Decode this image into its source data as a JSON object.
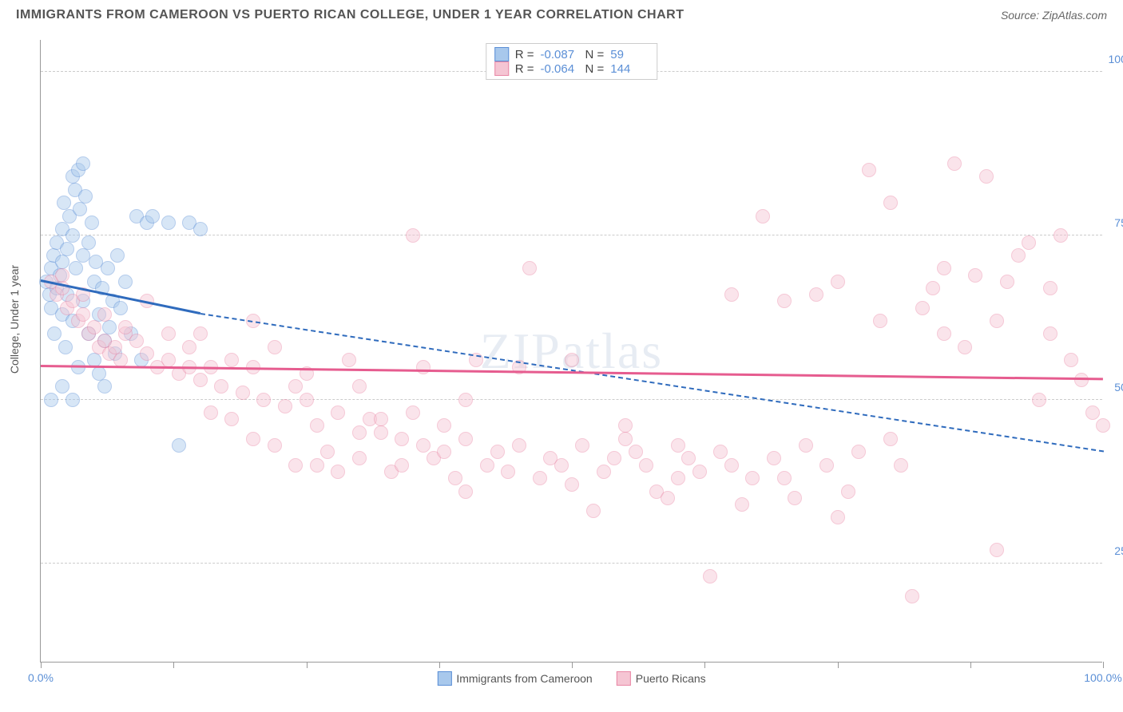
{
  "title": "IMMIGRANTS FROM CAMEROON VS PUERTO RICAN COLLEGE, UNDER 1 YEAR CORRELATION CHART",
  "source": "Source: ZipAtlas.com",
  "watermark": "ZIPatlas",
  "ylabel": "College, Under 1 year",
  "chart": {
    "type": "scatter",
    "xlim": [
      0,
      100
    ],
    "ylim": [
      10,
      105
    ],
    "ytick_values": [
      25,
      50,
      75,
      100
    ],
    "ytick_labels": [
      "25.0%",
      "50.0%",
      "75.0%",
      "100.0%"
    ],
    "xtick_values": [
      0,
      12.5,
      25,
      37.5,
      50,
      62.5,
      75,
      87.5,
      100
    ],
    "xtick_labels_shown": {
      "0": "0.0%",
      "100": "100.0%"
    },
    "grid_color": "#cccccc",
    "background_color": "#ffffff",
    "axis_color": "#999999",
    "tick_label_color": "#5b8fd6",
    "axis_label_color": "#555555",
    "title_color": "#555555",
    "title_fontsize": 16,
    "point_radius": 9,
    "point_opacity": 0.45
  },
  "series": [
    {
      "name": "Immigrants from Cameroon",
      "fill": "#a8c8ec",
      "stroke": "#5b8fd6",
      "R": "-0.087",
      "N": "59",
      "trend": {
        "x1": 0,
        "y1": 68,
        "x2": 15,
        "y2": 63,
        "dash_to_x": 100,
        "dash_to_y": 42,
        "color": "#2f6bbd",
        "width": 3
      },
      "points": [
        [
          0.5,
          68
        ],
        [
          0.8,
          66
        ],
        [
          1,
          70
        ],
        [
          1,
          64
        ],
        [
          1.2,
          72
        ],
        [
          1.3,
          60
        ],
        [
          1.5,
          74
        ],
        [
          1.5,
          67
        ],
        [
          1.8,
          69
        ],
        [
          2,
          76
        ],
        [
          2,
          71
        ],
        [
          2,
          63
        ],
        [
          2.2,
          80
        ],
        [
          2.3,
          58
        ],
        [
          2.5,
          73
        ],
        [
          2.5,
          66
        ],
        [
          2.7,
          78
        ],
        [
          3,
          84
        ],
        [
          3,
          75
        ],
        [
          3,
          62
        ],
        [
          3.2,
          82
        ],
        [
          3.3,
          70
        ],
        [
          3.5,
          85
        ],
        [
          3.5,
          55
        ],
        [
          3.7,
          79
        ],
        [
          4,
          86
        ],
        [
          4,
          72
        ],
        [
          4,
          65
        ],
        [
          4.2,
          81
        ],
        [
          4.5,
          60
        ],
        [
          4.5,
          74
        ],
        [
          4.8,
          77
        ],
        [
          5,
          68
        ],
        [
          5,
          56
        ],
        [
          5.2,
          71
        ],
        [
          5.5,
          63
        ],
        [
          5.5,
          54
        ],
        [
          5.8,
          67
        ],
        [
          6,
          59
        ],
        [
          6,
          52
        ],
        [
          6.3,
          70
        ],
        [
          6.5,
          61
        ],
        [
          6.8,
          65
        ],
        [
          7,
          57
        ],
        [
          7.2,
          72
        ],
        [
          7.5,
          64
        ],
        [
          8,
          68
        ],
        [
          8.5,
          60
        ],
        [
          9,
          78
        ],
        [
          9.5,
          56
        ],
        [
          10,
          77
        ],
        [
          10.5,
          78
        ],
        [
          12,
          77
        ],
        [
          13,
          43
        ],
        [
          14,
          77
        ],
        [
          15,
          76
        ],
        [
          1,
          50
        ],
        [
          2,
          52
        ],
        [
          3,
          50
        ]
      ]
    },
    {
      "name": "Puerto Ricans",
      "fill": "#f5c5d3",
      "stroke": "#e986a5",
      "R": "-0.064",
      "N": "144",
      "trend": {
        "x1": 0,
        "y1": 55,
        "x2": 100,
        "y2": 53,
        "color": "#e65c8f",
        "width": 3
      },
      "points": [
        [
          1,
          68
        ],
        [
          1.5,
          66
        ],
        [
          2,
          67
        ],
        [
          2.5,
          64
        ],
        [
          3,
          65
        ],
        [
          3.5,
          62
        ],
        [
          4,
          63
        ],
        [
          4.5,
          60
        ],
        [
          5,
          61
        ],
        [
          5.5,
          58
        ],
        [
          6,
          59
        ],
        [
          6.5,
          57
        ],
        [
          7,
          58
        ],
        [
          7.5,
          56
        ],
        [
          8,
          60
        ],
        [
          9,
          59
        ],
        [
          10,
          57
        ],
        [
          11,
          55
        ],
        [
          12,
          56
        ],
        [
          13,
          54
        ],
        [
          14,
          58
        ],
        [
          15,
          53
        ],
        [
          16,
          55
        ],
        [
          17,
          52
        ],
        [
          18,
          56
        ],
        [
          19,
          51
        ],
        [
          20,
          55
        ],
        [
          21,
          50
        ],
        [
          22,
          43
        ],
        [
          23,
          49
        ],
        [
          24,
          52
        ],
        [
          25,
          50
        ],
        [
          26,
          40
        ],
        [
          27,
          42
        ],
        [
          28,
          48
        ],
        [
          29,
          56
        ],
        [
          30,
          41
        ],
        [
          31,
          47
        ],
        [
          32,
          45
        ],
        [
          33,
          39
        ],
        [
          34,
          40
        ],
        [
          35,
          75
        ],
        [
          36,
          43
        ],
        [
          37,
          41
        ],
        [
          38,
          46
        ],
        [
          39,
          38
        ],
        [
          40,
          44
        ],
        [
          41,
          56
        ],
        [
          42,
          40
        ],
        [
          43,
          42
        ],
        [
          44,
          39
        ],
        [
          45,
          55
        ],
        [
          46,
          70
        ],
        [
          47,
          38
        ],
        [
          48,
          41
        ],
        [
          49,
          40
        ],
        [
          50,
          56
        ],
        [
          51,
          43
        ],
        [
          52,
          33
        ],
        [
          53,
          39
        ],
        [
          54,
          41
        ],
        [
          55,
          44
        ],
        [
          56,
          42
        ],
        [
          57,
          40
        ],
        [
          58,
          36
        ],
        [
          59,
          35
        ],
        [
          60,
          43
        ],
        [
          61,
          41
        ],
        [
          62,
          39
        ],
        [
          63,
          23
        ],
        [
          64,
          42
        ],
        [
          65,
          40
        ],
        [
          66,
          34
        ],
        [
          67,
          38
        ],
        [
          68,
          78
        ],
        [
          69,
          41
        ],
        [
          70,
          65
        ],
        [
          71,
          35
        ],
        [
          72,
          43
        ],
        [
          73,
          66
        ],
        [
          74,
          40
        ],
        [
          75,
          68
        ],
        [
          76,
          36
        ],
        [
          77,
          42
        ],
        [
          78,
          85
        ],
        [
          79,
          62
        ],
        [
          80,
          80
        ],
        [
          81,
          40
        ],
        [
          82,
          20
        ],
        [
          83,
          64
        ],
        [
          84,
          67
        ],
        [
          85,
          60
        ],
        [
          86,
          86
        ],
        [
          87,
          58
        ],
        [
          88,
          69
        ],
        [
          89,
          84
        ],
        [
          90,
          27
        ],
        [
          91,
          68
        ],
        [
          92,
          72
        ],
        [
          93,
          74
        ],
        [
          94,
          50
        ],
        [
          95,
          60
        ],
        [
          96,
          75
        ],
        [
          97,
          56
        ],
        [
          98,
          53
        ],
        [
          99,
          48
        ],
        [
          100,
          46
        ],
        [
          15,
          60
        ],
        [
          20,
          62
        ],
        [
          25,
          54
        ],
        [
          30,
          52
        ],
        [
          35,
          48
        ],
        [
          40,
          50
        ],
        [
          45,
          43
        ],
        [
          50,
          37
        ],
        [
          55,
          46
        ],
        [
          60,
          38
        ],
        [
          65,
          66
        ],
        [
          70,
          38
        ],
        [
          75,
          32
        ],
        [
          80,
          44
        ],
        [
          85,
          70
        ],
        [
          90,
          62
        ],
        [
          95,
          67
        ],
        [
          2,
          69
        ],
        [
          4,
          66
        ],
        [
          6,
          63
        ],
        [
          8,
          61
        ],
        [
          10,
          65
        ],
        [
          12,
          60
        ],
        [
          14,
          55
        ],
        [
          16,
          48
        ],
        [
          18,
          47
        ],
        [
          20,
          44
        ],
        [
          22,
          58
        ],
        [
          24,
          40
        ],
        [
          26,
          46
        ],
        [
          28,
          39
        ],
        [
          30,
          45
        ],
        [
          32,
          47
        ],
        [
          34,
          44
        ],
        [
          36,
          55
        ],
        [
          38,
          42
        ],
        [
          40,
          36
        ]
      ]
    }
  ],
  "legend": {
    "items": [
      "Immigrants from Cameroon",
      "Puerto Ricans"
    ]
  }
}
